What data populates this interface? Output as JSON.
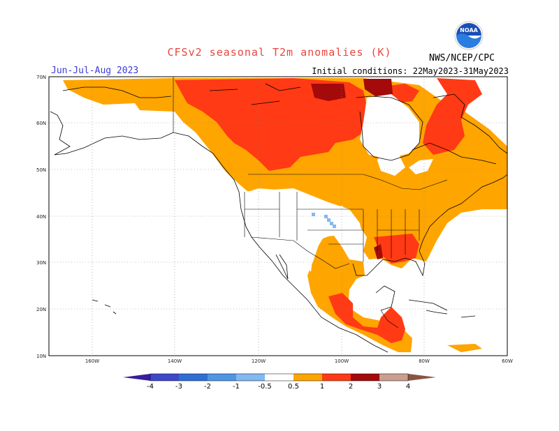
{
  "title": "CFSv2 seasonal T2m anomalies (K)",
  "season": "Jun-Jul-Aug 2023",
  "initial_conditions": "Initial conditions: 22May2023-31May2023",
  "agency": "NWS/NCEP/CPC",
  "logo_text": "NOAA",
  "lat_labels": [
    "70N",
    "60N",
    "50N",
    "40N",
    "30N",
    "20N",
    "10N"
  ],
  "lon_labels": [
    "160W",
    "140W",
    "120W",
    "100W",
    "80W",
    "60W"
  ],
  "colorbar": {
    "labels": [
      "-4",
      "-3",
      "-2",
      "-1",
      "-0.5",
      "0.5",
      "1",
      "2",
      "3",
      "4"
    ],
    "colors": [
      "#3a1c9e",
      "#3e48c8",
      "#2f6fd4",
      "#4f95e6",
      "#84b8f0",
      "#ffffff",
      "#ffa500",
      "#ff3a14",
      "#a40a0a",
      "#c9a090",
      "#8a5540"
    ]
  },
  "legend_classes": {
    "warm_05_1": "#ffa500",
    "warm_1_2": "#ff3a14",
    "warm_2_3": "#a40a0a",
    "cool_m1_m05": "#84b8f0"
  }
}
